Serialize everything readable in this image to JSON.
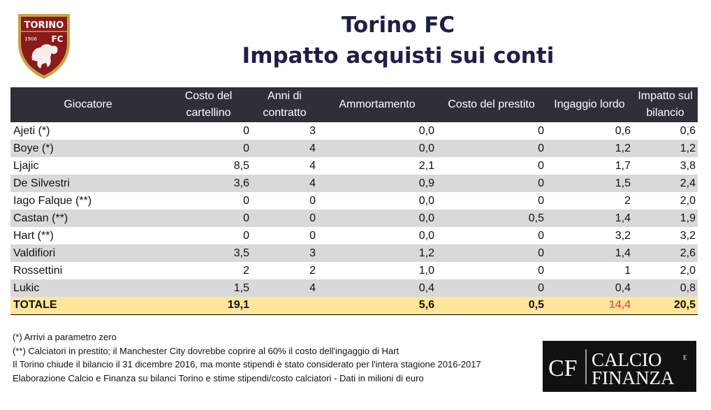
{
  "header": {
    "logo_text_top": "TORINO",
    "logo_year": "1906",
    "logo_fc": "FC",
    "title_line1": "Torino FC",
    "title_line2": "Impatto acquisti sui conti"
  },
  "colors": {
    "header_bg": "#2f2f3a",
    "row_alt": "#d9d9d9",
    "total_bg": "#ffe699",
    "total_red": "#e06666",
    "title": "#1e1e4a",
    "logo_red": "#8b1a1a",
    "logo_gold": "#c9a34a"
  },
  "chart_data": {
    "type": "table",
    "title": "Torino FC Impatto acquisti sui conti",
    "columns": [
      "Giocatore",
      "Costo del cartellino",
      "Anni di contratto",
      "Ammortamento",
      "Costo del prestito",
      "Ingaggio lordo",
      "Impatto sul bilancio"
    ],
    "rows": [
      [
        "Ajeti (*)",
        "0",
        "3",
        "0,0",
        "0",
        "0,6",
        "0,6"
      ],
      [
        "Boye (*)",
        "0",
        "4",
        "0,0",
        "0",
        "1,2",
        "1,2"
      ],
      [
        "Ljajic",
        "8,5",
        "4",
        "2,1",
        "0",
        "1,7",
        "3,8"
      ],
      [
        "De Silvestri",
        "3,6",
        "4",
        "0,9",
        "0",
        "1,5",
        "2,4"
      ],
      [
        "Iago Falque (**)",
        "0",
        "0",
        "0,0",
        "0",
        "2",
        "2,0"
      ],
      [
        "Castan (**)",
        "0",
        "0",
        "0,0",
        "0,5",
        "1,4",
        "1,9"
      ],
      [
        "Hart (**)",
        "0",
        "0",
        "0,0",
        "0",
        "3,2",
        "3,2"
      ],
      [
        "Valdifiori",
        "3,5",
        "3",
        "1,2",
        "0",
        "1,4",
        "2,6"
      ],
      [
        "Rossettini",
        "2",
        "2",
        "1,0",
        "0",
        "1",
        "2,0"
      ],
      [
        "Lukic",
        "1,5",
        "4",
        "0,4",
        "0",
        "0,4",
        "0,8"
      ]
    ],
    "total": [
      "TOTALE",
      "19,1",
      "",
      "5,6",
      "0,5",
      "14,4",
      "20,5"
    ]
  },
  "notes": [
    "(*) Arrivi a parametro zero",
    "(**) Calciatori in prestito; il Manchester City dovrebbe coprire al 60% il costo dell'ingaggio di Hart",
    "Il Torino chiude il bilancio il 31 dicembre 2016, ma monte stipendi è stato considerato per l'intera stagione 2016-2017",
    "Elaborazione Calcio e Finanza su bilanci Torino e stime stipendi/costo calciatori - Dati in milioni di euro"
  ],
  "brand": {
    "initials": "CF",
    "word1": "CALCIO",
    "small_e": "E",
    "word2": "FINANZA"
  }
}
